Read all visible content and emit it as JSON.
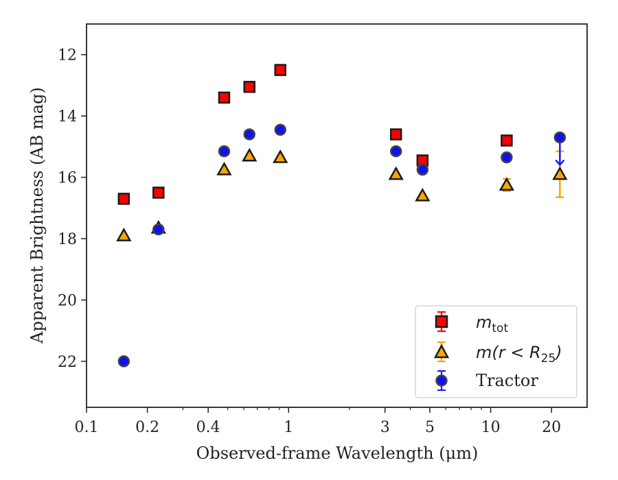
{
  "chart_data": {
    "type": "scatter",
    "xlabel": "Observed-frame Wavelength (μm)",
    "ylabel": "Apparent Brightness (AB mag)",
    "xscale": "log",
    "xlim": [
      0.1,
      30
    ],
    "ylim": [
      23.5,
      11
    ],
    "y_inverted": true,
    "xticks": [
      {
        "value": 0.1,
        "label": "0.1"
      },
      {
        "value": 0.2,
        "label": "0.2"
      },
      {
        "value": 0.4,
        "label": "0.4"
      },
      {
        "value": 1,
        "label": "1"
      },
      {
        "value": 3,
        "label": "3"
      },
      {
        "value": 5,
        "label": "5"
      },
      {
        "value": 10,
        "label": "10"
      },
      {
        "value": 20,
        "label": "20"
      }
    ],
    "yticks": [
      12,
      14,
      16,
      18,
      20,
      22
    ],
    "legend_position": "lower-right",
    "series": [
      {
        "name": "m_tot",
        "legend_label": "m_tot",
        "marker": "square",
        "color": "#ff0000",
        "edge": "#1a1a1a",
        "errcolor": "#ff0000",
        "points": [
          {
            "x": 0.153,
            "y": 16.7
          },
          {
            "x": 0.227,
            "y": 16.5
          },
          {
            "x": 0.48,
            "y": 13.4
          },
          {
            "x": 0.64,
            "y": 13.05
          },
          {
            "x": 0.91,
            "y": 12.5
          },
          {
            "x": 3.4,
            "y": 14.6
          },
          {
            "x": 4.6,
            "y": 15.45
          },
          {
            "x": 12.0,
            "y": 14.8
          }
        ]
      },
      {
        "name": "m(r<R25)",
        "legend_label": "m(r<R25)",
        "marker": "triangle",
        "color": "#ffa500",
        "edge": "#1a1a1a",
        "errcolor": "#ffa500",
        "points": [
          {
            "x": 0.153,
            "y": 17.9
          },
          {
            "x": 0.227,
            "y": 17.65
          },
          {
            "x": 0.48,
            "y": 15.75
          },
          {
            "x": 0.64,
            "y": 15.3
          },
          {
            "x": 0.91,
            "y": 15.35
          },
          {
            "x": 3.4,
            "y": 15.9
          },
          {
            "x": 4.6,
            "y": 16.6
          },
          {
            "x": 12.0,
            "y": 16.25,
            "yerr": 0.2
          },
          {
            "x": 22.0,
            "y": 15.9,
            "yerr": 0.75
          }
        ]
      },
      {
        "name": "Tractor",
        "legend_label": "Tractor",
        "marker": "circle",
        "color": "#1010ee",
        "edge": "#444444",
        "errcolor": "#1a1aff",
        "points": [
          {
            "x": 0.153,
            "y": 22.0
          },
          {
            "x": 0.227,
            "y": 17.7
          },
          {
            "x": 0.48,
            "y": 15.15
          },
          {
            "x": 0.64,
            "y": 14.6
          },
          {
            "x": 0.91,
            "y": 14.45
          },
          {
            "x": 3.4,
            "y": 15.15
          },
          {
            "x": 4.6,
            "y": 15.75
          },
          {
            "x": 12.0,
            "y": 15.35
          },
          {
            "x": 22.0,
            "y": 14.7,
            "upper_limit": true
          }
        ]
      }
    ]
  }
}
